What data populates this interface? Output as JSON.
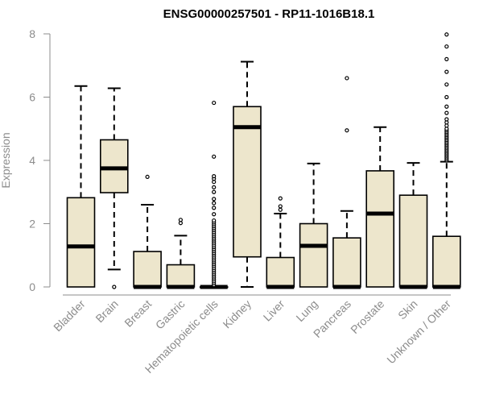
{
  "chart_data": {
    "type": "box",
    "title": "ENSG00000257501 - RP11-1016B18.1",
    "ylabel": "Expression",
    "xlabel": "",
    "ylim": [
      0,
      8
    ],
    "yticks": [
      0,
      2,
      4,
      6,
      8
    ],
    "box_fill": "#ede6cc",
    "categories": [
      "Bladder",
      "Brain",
      "Breast",
      "Gastric",
      "Hematopoietic cells",
      "Kidney",
      "Liver",
      "Lung",
      "Pancreas",
      "Prostate",
      "Skin",
      "Unknown / Other"
    ],
    "boxes": [
      {
        "min": 0,
        "q1": 0,
        "median": 1.28,
        "q3": 2.82,
        "max": 6.35,
        "outliers": []
      },
      {
        "min": 0.55,
        "q1": 2.98,
        "median": 3.75,
        "q3": 4.65,
        "max": 6.28,
        "outliers": [
          0
        ]
      },
      {
        "min": 0,
        "q1": 0,
        "median": 0,
        "q3": 1.12,
        "max": 2.6,
        "outliers": [
          3.48
        ]
      },
      {
        "min": 0,
        "q1": 0,
        "median": 0,
        "q3": 0.7,
        "max": 1.62,
        "outliers": [
          2.02,
          2.12
        ]
      },
      {
        "min": 0,
        "q1": 0,
        "median": 0,
        "q3": 0,
        "max": 0,
        "outliers": [
          0.06,
          0.12,
          0.18,
          0.24,
          0.3,
          0.36,
          0.42,
          0.48,
          0.54,
          0.6,
          0.66,
          0.72,
          0.78,
          0.84,
          0.9,
          0.96,
          1.02,
          1.08,
          1.14,
          1.2,
          1.26,
          1.32,
          1.38,
          1.44,
          1.5,
          1.56,
          1.62,
          1.68,
          1.74,
          1.8,
          1.86,
          1.92,
          1.98,
          2.04,
          2.1,
          2.3,
          2.5,
          2.65,
          2.78,
          3.0,
          3.15,
          3.32,
          3.42,
          3.5,
          4.12,
          5.82
        ]
      },
      {
        "min": 0,
        "q1": 0.95,
        "median": 5.05,
        "q3": 5.7,
        "max": 7.12,
        "outliers": []
      },
      {
        "min": 0,
        "q1": 0,
        "median": 0,
        "q3": 0.93,
        "max": 2.32,
        "outliers": [
          2.44,
          2.55,
          2.8
        ]
      },
      {
        "min": 0,
        "q1": 0,
        "median": 1.3,
        "q3": 2.0,
        "max": 3.9,
        "outliers": []
      },
      {
        "min": 0,
        "q1": 0,
        "median": 0,
        "q3": 1.55,
        "max": 2.4,
        "outliers": [
          4.95,
          6.6
        ]
      },
      {
        "min": 0,
        "q1": 0,
        "median": 2.32,
        "q3": 3.67,
        "max": 5.05,
        "outliers": []
      },
      {
        "min": 0,
        "q1": 0,
        "median": 0,
        "q3": 2.9,
        "max": 3.92,
        "outliers": []
      },
      {
        "min": 0,
        "q1": 0,
        "median": 0,
        "q3": 1.6,
        "max": 3.96,
        "outliers": [
          4.0,
          4.05,
          4.1,
          4.15,
          4.2,
          4.25,
          4.3,
          4.35,
          4.4,
          4.45,
          4.5,
          4.55,
          4.6,
          4.65,
          4.7,
          4.75,
          4.8,
          4.85,
          4.9,
          4.95,
          5.0,
          5.1,
          5.2,
          5.3,
          5.5,
          5.7,
          6.0,
          6.4,
          6.8,
          7.2,
          7.6,
          7.98
        ]
      }
    ]
  }
}
